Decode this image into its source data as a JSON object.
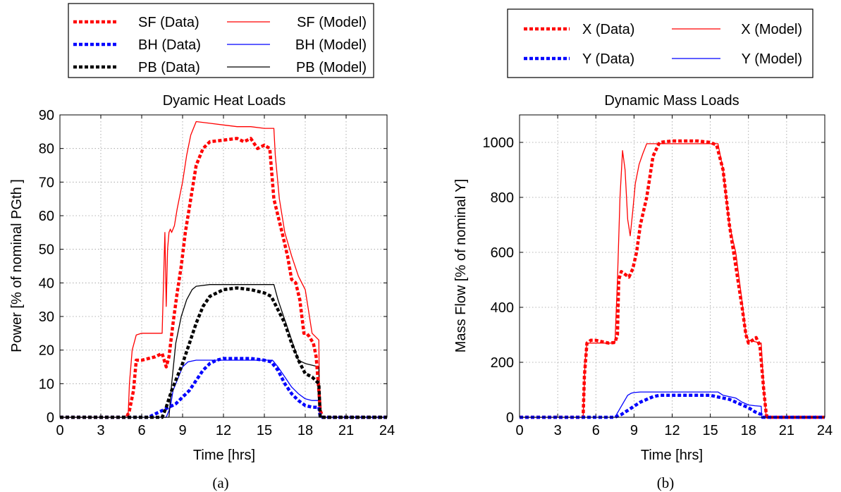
{
  "chart_data": [
    {
      "type": "line",
      "title": "Dyamic Heat Loads",
      "xlabel": "Time [hrs]",
      "ylabel": "Power [% of nominal PGth ]",
      "caption": "(a)",
      "xlim": [
        0,
        24
      ],
      "ylim": [
        0,
        90
      ],
      "xticks": [
        0,
        3,
        6,
        9,
        12,
        15,
        18,
        21,
        24
      ],
      "yticks": [
        0,
        10,
        20,
        30,
        40,
        50,
        60,
        70,
        80,
        90
      ],
      "grid": true,
      "legend_position": "above plot",
      "series": [
        {
          "name": "SF (Data)",
          "color": "#ff0000",
          "style": "dashed-thick",
          "x": [
            0,
            4.9,
            5.1,
            5.4,
            5.6,
            6.0,
            6.5,
            7.0,
            7.5,
            7.8,
            8.0,
            8.3,
            8.6,
            8.9,
            9.2,
            9.6,
            10.0,
            10.5,
            11.0,
            12.0,
            13.0,
            13.5,
            14.0,
            14.5,
            15.0,
            15.4,
            15.7,
            16.0,
            16.3,
            16.7,
            17.0,
            17.3,
            17.6,
            17.9,
            18.1,
            18.3,
            18.6,
            18.8,
            19.0,
            19.1,
            19.3,
            24
          ],
          "y": [
            0,
            0,
            2,
            8,
            17,
            17,
            17.5,
            18,
            19,
            15,
            18,
            28,
            37,
            45,
            55,
            65,
            75,
            80,
            82,
            82.5,
            83,
            82,
            83,
            80,
            81,
            80,
            65,
            60,
            55,
            48,
            41,
            40,
            35,
            25,
            25,
            24,
            22,
            18,
            8,
            2,
            0,
            0
          ]
        },
        {
          "name": "SF (Model)",
          "color": "#ff0000",
          "style": "thin",
          "x": [
            0,
            5.0,
            5.1,
            5.3,
            5.6,
            6.0,
            6.5,
            7.0,
            7.5,
            7.7,
            7.8,
            7.9,
            8.0,
            8.1,
            8.2,
            8.4,
            8.6,
            8.8,
            9.0,
            9.3,
            9.6,
            10.0,
            11.0,
            12.0,
            13.0,
            14.0,
            15.0,
            15.7,
            15.8,
            16.1,
            16.5,
            17.0,
            17.5,
            18.0,
            18.5,
            19.0,
            19.05,
            19.1,
            24
          ],
          "y": [
            0,
            0,
            10,
            20,
            24.5,
            25,
            25,
            25,
            25,
            55,
            33,
            50,
            55,
            56,
            55,
            57,
            62,
            66,
            70,
            78,
            84,
            88,
            87.5,
            87,
            86.5,
            86.5,
            86,
            86,
            78,
            65,
            55,
            48,
            42,
            38,
            25,
            23,
            2,
            0,
            0
          ]
        },
        {
          "name": "BH (Data)",
          "color": "#0000ff",
          "style": "dashed-thick",
          "x": [
            0,
            6.5,
            7.0,
            7.5,
            8.0,
            8.5,
            9.0,
            9.5,
            10.0,
            10.5,
            11.0,
            11.5,
            12.0,
            13.0,
            14.0,
            15.0,
            15.5,
            16.0,
            16.5,
            17.0,
            17.5,
            18.0,
            18.5,
            19.0,
            19.1,
            24
          ],
          "y": [
            0,
            0,
            1,
            2,
            3,
            4,
            6,
            8,
            11,
            14,
            16,
            17,
            17.5,
            17.5,
            17.5,
            17,
            16.5,
            14,
            10,
            7,
            5,
            3.5,
            3,
            3,
            0,
            0
          ]
        },
        {
          "name": "BH (Model)",
          "color": "#0000ff",
          "style": "thin",
          "x": [
            0,
            7.8,
            8.1,
            8.3,
            8.6,
            9.0,
            9.4,
            10.0,
            11.0,
            12.0,
            13.0,
            14.0,
            15.0,
            15.6,
            16.0,
            16.5,
            17.0,
            17.5,
            18.0,
            18.5,
            19.0,
            19.05,
            24
          ],
          "y": [
            0,
            0,
            3,
            8,
            11,
            15,
            16.5,
            17,
            17,
            17,
            17,
            17,
            17,
            17,
            15,
            12,
            9,
            7,
            5.5,
            5,
            5,
            0,
            0
          ]
        },
        {
          "name": "PB (Data)",
          "color": "#000000",
          "style": "dashed-thick",
          "x": [
            0,
            7.5,
            7.8,
            8.2,
            8.6,
            9.0,
            9.5,
            10.0,
            10.5,
            11.0,
            12.0,
            13.0,
            14.0,
            15.0,
            15.5,
            16.0,
            16.5,
            17.0,
            17.5,
            18.0,
            18.5,
            19.0,
            19.1,
            24
          ],
          "y": [
            0,
            0,
            3,
            8,
            12,
            16,
            22,
            28,
            33,
            36,
            38,
            38.5,
            38,
            37,
            36,
            32,
            28,
            22,
            17,
            13,
            12,
            10,
            0,
            0
          ]
        },
        {
          "name": "PB (Model)",
          "color": "#000000",
          "style": "thin",
          "x": [
            0,
            8.0,
            8.2,
            8.5,
            8.9,
            9.3,
            9.7,
            10.0,
            11.0,
            12.0,
            13.0,
            14.0,
            15.0,
            15.7,
            16.0,
            16.5,
            17.0,
            17.5,
            18.0,
            18.5,
            19.0,
            19.05,
            24
          ],
          "y": [
            0,
            0,
            10,
            22,
            30,
            35,
            38,
            39,
            39.5,
            39.5,
            39.5,
            39.5,
            39.5,
            39.5,
            35,
            29,
            23,
            17,
            16,
            15.5,
            15,
            0,
            0
          ]
        }
      ]
    },
    {
      "type": "line",
      "title": "Dynamic Mass Loads",
      "xlabel": "Time [hrs]",
      "ylabel": "Mass Flow [% of nominal Y]",
      "caption": "(b)",
      "xlim": [
        0,
        24
      ],
      "ylim": [
        0,
        1100
      ],
      "xticks": [
        0,
        3,
        6,
        9,
        12,
        15,
        18,
        21,
        24
      ],
      "yticks": [
        0,
        200,
        400,
        600,
        800,
        1000
      ],
      "grid": true,
      "legend_position": "above plot",
      "series": [
        {
          "name": "X (Data)",
          "color": "#ff0000",
          "style": "dashed-thick",
          "x": [
            0,
            5.0,
            5.1,
            5.3,
            5.6,
            6.0,
            6.5,
            7.0,
            7.5,
            7.7,
            7.8,
            8.0,
            8.3,
            8.6,
            8.9,
            9.2,
            9.5,
            10.0,
            10.5,
            11.0,
            12.0,
            13.0,
            14.0,
            15.0,
            15.5,
            16.0,
            16.5,
            17.0,
            17.5,
            17.8,
            18.0,
            18.3,
            18.6,
            18.9,
            19.2,
            19.4,
            19.5,
            24
          ],
          "y": [
            0,
            0,
            150,
            270,
            280,
            280,
            275,
            270,
            272,
            300,
            500,
            530,
            520,
            510,
            540,
            600,
            700,
            800,
            950,
            1000,
            1005,
            1005,
            1005,
            1000,
            990,
            900,
            700,
            550,
            400,
            300,
            270,
            280,
            290,
            260,
            100,
            10,
            0,
            0
          ]
        },
        {
          "name": "X (Model)",
          "color": "#ff0000",
          "style": "thin",
          "x": [
            0,
            5.0,
            5.15,
            5.3,
            6.0,
            7.0,
            7.5,
            7.7,
            7.9,
            8.1,
            8.3,
            8.5,
            8.7,
            8.9,
            9.1,
            9.4,
            9.7,
            10.0,
            11.0,
            12.0,
            13.0,
            14.0,
            15.0,
            15.6,
            16.0,
            16.5,
            17.0,
            17.5,
            17.8,
            18.0,
            18.5,
            19.0,
            19.2,
            19.4,
            24
          ],
          "y": [
            0,
            0,
            200,
            270,
            270,
            270,
            270,
            500,
            800,
            970,
            900,
            720,
            660,
            750,
            850,
            920,
            960,
            995,
            995,
            995,
            995,
            995,
            995,
            995,
            900,
            700,
            600,
            420,
            300,
            280,
            275,
            270,
            100,
            0,
            0
          ]
        },
        {
          "name": "Y (Data)",
          "color": "#0000ff",
          "style": "dashed-thick",
          "x": [
            0,
            7.5,
            8.0,
            8.5,
            9.0,
            9.5,
            10.0,
            10.5,
            11.0,
            12.0,
            13.0,
            14.0,
            15.0,
            15.5,
            16.0,
            16.5,
            17.0,
            17.5,
            18.0,
            18.5,
            19.0,
            19.1,
            24
          ],
          "y": [
            0,
            0,
            10,
            25,
            40,
            55,
            65,
            75,
            80,
            80,
            80,
            80,
            80,
            75,
            70,
            65,
            55,
            45,
            35,
            20,
            10,
            0,
            0
          ]
        },
        {
          "name": "Y (Model)",
          "color": "#0000ff",
          "style": "thin",
          "x": [
            0,
            7.5,
            8.0,
            8.5,
            8.8,
            9.0,
            9.5,
            10.0,
            11.0,
            12.0,
            13.0,
            14.0,
            15.0,
            15.6,
            16.0,
            16.5,
            17.0,
            17.5,
            18.0,
            18.5,
            19.0,
            19.05,
            24
          ],
          "y": [
            0,
            0,
            40,
            80,
            88,
            90,
            92,
            92,
            92,
            92,
            92,
            92,
            92,
            92,
            80,
            75,
            70,
            55,
            45,
            42,
            40,
            0,
            0
          ]
        }
      ]
    }
  ]
}
